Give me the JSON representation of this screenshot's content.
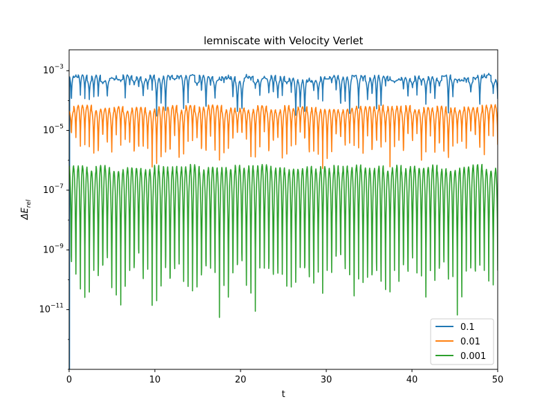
{
  "chart_data": {
    "type": "line",
    "title": "lemniscate with Velocity Verlet",
    "xlabel": "t",
    "ylabel": "ΔE",
    "ylabel_subscript": "rel",
    "xlim": [
      0,
      50
    ],
    "ylim_log10": [
      -13,
      -2.3
    ],
    "yscale": "log",
    "x_ticks": [
      0,
      10,
      20,
      30,
      40,
      50
    ],
    "x_tick_labels": [
      "0",
      "10",
      "20",
      "30",
      "40",
      "50"
    ],
    "y_ticks_log10": [
      -3,
      -5,
      -7,
      -9,
      -11
    ],
    "y_tick_mantissa": "10",
    "y_tick_exponents": [
      "−3",
      "−5",
      "−7",
      "−9",
      "−11"
    ],
    "grid": false,
    "legend_position": "lower-right",
    "oscillation_period": 0.5236,
    "series": [
      {
        "name": "0.1",
        "color": "#1f77b4",
        "peak": 0.00055,
        "trough": 0.00025,
        "dip_min": 1e-05,
        "deep_dip_at": 0.05
      },
      {
        "name": "0.01",
        "color": "#ff7f0e",
        "peak": 5.5e-05,
        "trough": 1e-06,
        "dip_min": 5e-07
      },
      {
        "name": "0.001",
        "color": "#2ca02c",
        "peak": 5.5e-07,
        "trough": 5e-12,
        "dip_min": 5e-13
      }
    ]
  }
}
